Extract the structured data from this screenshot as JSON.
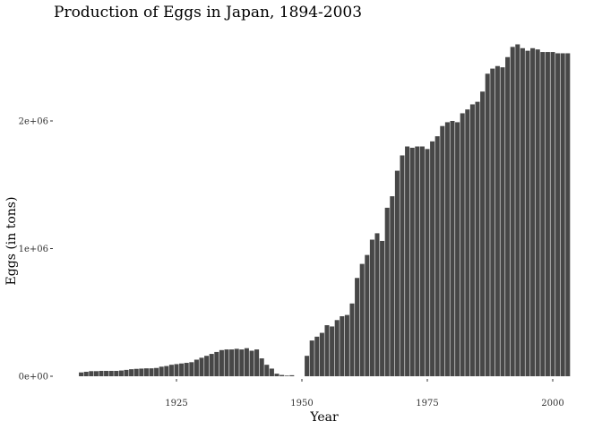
{
  "chart_data": {
    "type": "bar",
    "title": "Production of Eggs in Japan, 1894-2003",
    "xlabel": "Year",
    "ylabel": "Eggs (in tons)",
    "xlim": [
      1904.5,
      2003.5
    ],
    "ylim": [
      0,
      2600000
    ],
    "x_ticks": [
      1925,
      1950,
      1975,
      2000
    ],
    "y_ticks": [
      {
        "value": 0,
        "label": "0e+00"
      },
      {
        "value": 1000000,
        "label": "1e+06"
      },
      {
        "value": 2000000,
        "label": "2e+06"
      }
    ],
    "grid": false,
    "bar_color": "#474747",
    "x": [
      1906,
      1907,
      1908,
      1909,
      1910,
      1911,
      1912,
      1913,
      1914,
      1915,
      1916,
      1917,
      1918,
      1919,
      1920,
      1921,
      1922,
      1923,
      1924,
      1925,
      1926,
      1927,
      1928,
      1929,
      1930,
      1931,
      1932,
      1933,
      1934,
      1935,
      1936,
      1937,
      1938,
      1939,
      1940,
      1941,
      1942,
      1943,
      1944,
      1945,
      1946,
      1947,
      1948,
      1951,
      1952,
      1953,
      1954,
      1955,
      1956,
      1957,
      1958,
      1959,
      1960,
      1961,
      1962,
      1963,
      1964,
      1965,
      1966,
      1967,
      1968,
      1969,
      1970,
      1971,
      1972,
      1973,
      1974,
      1975,
      1976,
      1977,
      1978,
      1979,
      1980,
      1981,
      1982,
      1983,
      1984,
      1985,
      1986,
      1987,
      1988,
      1989,
      1990,
      1991,
      1992,
      1993,
      1994,
      1995,
      1996,
      1997,
      1998,
      1999,
      2000,
      2001,
      2002,
      2003
    ],
    "values": [
      30000,
      35000,
      40000,
      40000,
      42000,
      42000,
      42000,
      42000,
      45000,
      50000,
      55000,
      58000,
      60000,
      62000,
      62000,
      65000,
      75000,
      80000,
      90000,
      95000,
      100000,
      105000,
      110000,
      130000,
      145000,
      160000,
      175000,
      190000,
      205000,
      210000,
      210000,
      215000,
      210000,
      220000,
      200000,
      210000,
      140000,
      90000,
      60000,
      20000,
      10000,
      5000,
      8000,
      160000,
      280000,
      310000,
      340000,
      400000,
      390000,
      440000,
      470000,
      480000,
      570000,
      770000,
      880000,
      950000,
      1070000,
      1120000,
      1060000,
      1320000,
      1410000,
      1610000,
      1730000,
      1800000,
      1790000,
      1800000,
      1800000,
      1780000,
      1840000,
      1880000,
      1960000,
      1990000,
      2000000,
      1990000,
      2060000,
      2090000,
      2130000,
      2150000,
      2230000,
      2370000,
      2410000,
      2430000,
      2420000,
      2500000,
      2580000,
      2600000,
      2570000,
      2550000,
      2570000,
      2560000,
      2540000,
      2540000,
      2540000,
      2530000,
      2530000,
      2530000
    ]
  }
}
